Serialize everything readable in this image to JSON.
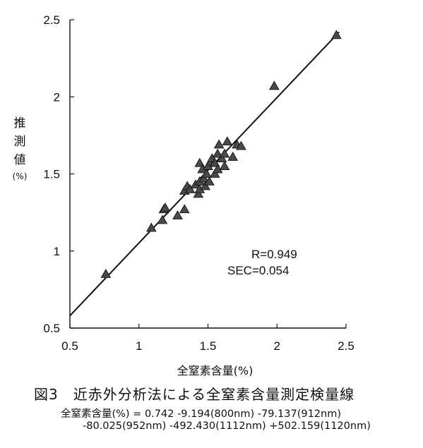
{
  "chart_data": {
    "type": "scatter",
    "title": "",
    "xlabel": "全窒素含量(%)",
    "ylabel": [
      "推",
      "測",
      "値",
      "(%)"
    ],
    "xlim": [
      0.5,
      2.5
    ],
    "ylim": [
      0.5,
      2.5
    ],
    "xticks": [
      "0.5",
      "1",
      "1.5",
      "2",
      "2.5"
    ],
    "yticks": [
      "0.5",
      "1",
      "1.5",
      "2",
      "2.5"
    ],
    "marker": "triangle",
    "fit_line": [
      [
        0.5,
        0.58
      ],
      [
        2.45,
        2.42
      ]
    ],
    "stats": [
      "R=0.949",
      "SEC=0.054"
    ],
    "points": [
      [
        0.76,
        0.85
      ],
      [
        1.09,
        1.15
      ],
      [
        1.17,
        1.2
      ],
      [
        1.18,
        1.27
      ],
      [
        1.19,
        1.28
      ],
      [
        1.28,
        1.23
      ],
      [
        1.33,
        1.27
      ],
      [
        1.33,
        1.39
      ],
      [
        1.35,
        1.42
      ],
      [
        1.37,
        1.4
      ],
      [
        1.41,
        1.43
      ],
      [
        1.43,
        1.37
      ],
      [
        1.44,
        1.4
      ],
      [
        1.44,
        1.45
      ],
      [
        1.44,
        1.57
      ],
      [
        1.46,
        1.53
      ],
      [
        1.47,
        1.47
      ],
      [
        1.48,
        1.42
      ],
      [
        1.49,
        1.5
      ],
      [
        1.5,
        1.55
      ],
      [
        1.51,
        1.45
      ],
      [
        1.52,
        1.58
      ],
      [
        1.53,
        1.6
      ],
      [
        1.55,
        1.5
      ],
      [
        1.55,
        1.57
      ],
      [
        1.57,
        1.53
      ],
      [
        1.57,
        1.63
      ],
      [
        1.58,
        1.69
      ],
      [
        1.6,
        1.6
      ],
      [
        1.62,
        1.55
      ],
      [
        1.62,
        1.63
      ],
      [
        1.64,
        1.71
      ],
      [
        1.68,
        1.61
      ],
      [
        1.71,
        1.69
      ],
      [
        1.74,
        1.68
      ],
      [
        1.98,
        2.07
      ],
      [
        2.43,
        2.4
      ]
    ]
  },
  "caption": "図3　近赤外分析法による全窒素含量測定検量線",
  "equation_line1": "全窒素含量(%) = 0.742 -9.194(800nm) -79.137(912nm)",
  "equation_line2": "-80.025(952nm) -492.430(1112nm) +502.159(1120nm)"
}
